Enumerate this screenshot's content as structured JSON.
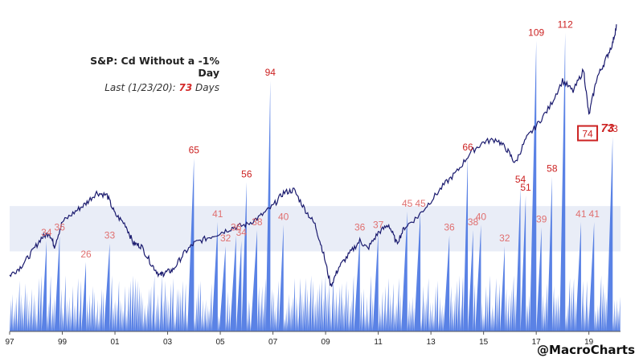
{
  "chart_data": {
    "type": "line",
    "title": "S&P: Cd Without a -1% Day",
    "subtitle": {
      "prefix": "Last (1/23/20): ",
      "value": "73",
      "suffix": " Days"
    },
    "x_tick_labels": [
      "97",
      "99",
      "01",
      "03",
      "05",
      "07",
      "09",
      "11",
      "13",
      "15",
      "17",
      "19"
    ],
    "x_tick_years": [
      1997,
      1999,
      2001,
      2003,
      2005,
      2007,
      2009,
      2011,
      2013,
      2015,
      2017,
      2019
    ],
    "xlim": [
      1997,
      2020.2
    ],
    "ylim_days": [
      0,
      120
    ],
    "shaded_band_days": [
      30,
      47
    ],
    "series": [
      {
        "kind": "area",
        "color": "#3d6ce0",
        "peaks": [
          {
            "x": 1998.4,
            "y": 34,
            "label": "34"
          },
          {
            "x": 1998.9,
            "y": 36,
            "label": "36"
          },
          {
            "x": 1999.9,
            "y": 26,
            "label": "26"
          },
          {
            "x": 2000.8,
            "y": 33,
            "label": "33"
          },
          {
            "x": 2004.0,
            "y": 65,
            "label": "65"
          },
          {
            "x": 2004.9,
            "y": 41,
            "label": "41"
          },
          {
            "x": 2005.2,
            "y": 32,
            "label": "32"
          },
          {
            "x": 2005.6,
            "y": 36,
            "label": "36"
          },
          {
            "x": 2005.8,
            "y": 34,
            "label": "34"
          },
          {
            "x": 2006.0,
            "y": 56,
            "label": "56"
          },
          {
            "x": 2006.4,
            "y": 38,
            "label": "38"
          },
          {
            "x": 2006.9,
            "y": 94,
            "label": "94"
          },
          {
            "x": 2007.4,
            "y": 40,
            "label": "40"
          },
          {
            "x": 2010.3,
            "y": 36,
            "label": "36"
          },
          {
            "x": 2011.0,
            "y": 37,
            "label": "37"
          },
          {
            "x": 2012.1,
            "y": 45,
            "label": "45"
          },
          {
            "x": 2012.6,
            "y": 45,
            "label": "45"
          },
          {
            "x": 2013.7,
            "y": 36,
            "label": "36"
          },
          {
            "x": 2014.4,
            "y": 66,
            "label": "66"
          },
          {
            "x": 2014.6,
            "y": 38,
            "label": "38"
          },
          {
            "x": 2014.9,
            "y": 40,
            "label": "40"
          },
          {
            "x": 2015.8,
            "y": 32,
            "label": "32"
          },
          {
            "x": 2016.4,
            "y": 54,
            "label": "54"
          },
          {
            "x": 2016.6,
            "y": 51,
            "label": "51"
          },
          {
            "x": 2017.0,
            "y": 109,
            "label": "109"
          },
          {
            "x": 2017.2,
            "y": 39,
            "label": "39"
          },
          {
            "x": 2017.6,
            "y": 58,
            "label": "58"
          },
          {
            "x": 2018.1,
            "y": 112,
            "label": "112"
          },
          {
            "x": 2018.7,
            "y": 41,
            "label": "41"
          },
          {
            "x": 2019.2,
            "y": 41,
            "label": "41"
          },
          {
            "x": 2019.9,
            "y": 73,
            "label": "73"
          }
        ]
      },
      {
        "kind": "line",
        "color": "#1a1a6e",
        "points": [
          [
            1997.0,
            21
          ],
          [
            1997.4,
            24
          ],
          [
            1997.8,
            29
          ],
          [
            1998.2,
            35
          ],
          [
            1998.5,
            37
          ],
          [
            1998.7,
            32
          ],
          [
            1999.0,
            41
          ],
          [
            1999.5,
            45
          ],
          [
            1999.9,
            48
          ],
          [
            2000.3,
            52
          ],
          [
            2000.7,
            51
          ],
          [
            2001.0,
            44
          ],
          [
            2001.4,
            40
          ],
          [
            2001.7,
            33
          ],
          [
            2002.0,
            32
          ],
          [
            2002.4,
            25
          ],
          [
            2002.7,
            21
          ],
          [
            2002.9,
            22
          ],
          [
            2003.2,
            23
          ],
          [
            2003.6,
            29
          ],
          [
            2004.0,
            33
          ],
          [
            2004.5,
            35
          ],
          [
            2005.0,
            37
          ],
          [
            2005.5,
            39
          ],
          [
            2006.0,
            40
          ],
          [
            2006.5,
            43
          ],
          [
            2007.0,
            47
          ],
          [
            2007.4,
            52
          ],
          [
            2007.8,
            53
          ],
          [
            2008.2,
            46
          ],
          [
            2008.6,
            40
          ],
          [
            2008.9,
            30
          ],
          [
            2009.2,
            17
          ],
          [
            2009.5,
            24
          ],
          [
            2009.9,
            29
          ],
          [
            2010.3,
            34
          ],
          [
            2010.6,
            31
          ],
          [
            2011.0,
            37
          ],
          [
            2011.4,
            40
          ],
          [
            2011.7,
            33
          ],
          [
            2012.0,
            39
          ],
          [
            2012.5,
            43
          ],
          [
            2013.0,
            49
          ],
          [
            2013.5,
            55
          ],
          [
            2014.0,
            60
          ],
          [
            2014.5,
            67
          ],
          [
            2015.0,
            71
          ],
          [
            2015.5,
            72
          ],
          [
            2015.9,
            68
          ],
          [
            2016.2,
            63
          ],
          [
            2016.6,
            72
          ],
          [
            2017.0,
            77
          ],
          [
            2017.5,
            84
          ],
          [
            2018.0,
            94
          ],
          [
            2018.4,
            90
          ],
          [
            2018.8,
            98
          ],
          [
            2019.0,
            81
          ],
          [
            2019.3,
            95
          ],
          [
            2019.6,
            101
          ],
          [
            2019.9,
            108
          ],
          [
            2020.06,
            115
          ]
        ]
      }
    ],
    "annotations": [
      {
        "text": "74",
        "x": 2018.95,
        "y": 74,
        "boxed": true
      },
      {
        "text": "73",
        "x": 2020.0,
        "y": 73,
        "emphasis": true
      }
    ]
  },
  "watermark": "@MacroCharts"
}
